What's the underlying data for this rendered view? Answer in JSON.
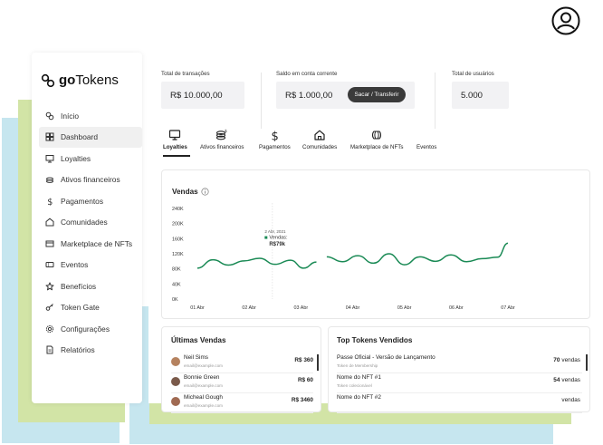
{
  "app": {
    "logo_prefix": "go",
    "logo_suffix": "Tokens"
  },
  "sidebar": {
    "items": [
      {
        "label": "Início",
        "icon": "gotokens-icon"
      },
      {
        "label": "Dashboard",
        "icon": "grid-icon"
      },
      {
        "label": "Loyalties",
        "icon": "monitor-icon"
      },
      {
        "label": "Ativos financeiros",
        "icon": "coins-icon"
      },
      {
        "label": "Pagamentos",
        "icon": "dollar-icon"
      },
      {
        "label": "Comunidades",
        "icon": "home-icon"
      },
      {
        "label": "Marketplace de NFTs",
        "icon": "card-icon"
      },
      {
        "label": "Eventos",
        "icon": "ticket-icon"
      },
      {
        "label": "Benefícios",
        "icon": "star-icon"
      },
      {
        "label": "Token Gate",
        "icon": "key-icon"
      },
      {
        "label": "Configurações",
        "icon": "gear-icon"
      },
      {
        "label": "Relatórios",
        "icon": "document-icon"
      }
    ],
    "active": "Dashboard"
  },
  "stats": {
    "transactions": {
      "label": "Total de transações",
      "value": "R$ 10.000,00"
    },
    "balance": {
      "label": "Saldo em conta corrente",
      "value": "R$ 1.000,00",
      "button": "Sacar / Transferir"
    },
    "users": {
      "label": "Total de usuários",
      "value": "5.000"
    }
  },
  "tabs": [
    {
      "label": "Loyalties",
      "icon": "monitor-icon"
    },
    {
      "label": "Ativos financeiros",
      "icon": "coins-icon"
    },
    {
      "label": "Pagamentos",
      "icon": "dollar-icon"
    },
    {
      "label": "Comunidades",
      "icon": "home-icon"
    },
    {
      "label": "Marketplace de NFTs",
      "icon": "nft-icon"
    },
    {
      "label": "Eventos",
      "icon": ""
    }
  ],
  "sales_chart": {
    "title": "Vendas",
    "info_icon": "info-icon",
    "tooltip": {
      "date": "2 Abr, 2021",
      "label": "Vendas:",
      "value": "R$79k"
    }
  },
  "chart_data": {
    "type": "line",
    "title": "Vendas",
    "x_ticks": [
      "01 Abr",
      "02 Abr",
      "03 Abr",
      "04 Abr",
      "05 Abr",
      "06 Abr",
      "07 Abr"
    ],
    "y_ticks": [
      "0K",
      "40K",
      "80K",
      "120K",
      "160K",
      "200K",
      "240K"
    ],
    "ylim": [
      0,
      240000
    ],
    "series": [
      {
        "color": "#1a8a55",
        "x": [
          1.0,
          1.3,
          1.6,
          1.9,
          2.2,
          2.5,
          2.8,
          3.05,
          3.3
        ],
        "y": [
          82000,
          104000,
          90000,
          101000,
          108000,
          92000,
          103000,
          82000,
          98000
        ]
      },
      {
        "color": "#1a8a55",
        "x": [
          3.5,
          3.8,
          4.1,
          4.4,
          4.7,
          5.0,
          5.3,
          5.6,
          5.9,
          6.2,
          6.5,
          6.8,
          7.0
        ],
        "y": [
          112000,
          99000,
          115000,
          95000,
          120000,
          91000,
          112000,
          100000,
          117000,
          99000,
          107000,
          111000,
          148000
        ]
      }
    ],
    "grid": false
  },
  "recent_sales": {
    "title": "Últimas Vendas",
    "rows": [
      {
        "name": "Neil Sims",
        "email": "email@example.com",
        "value": "R$ 360"
      },
      {
        "name": "Bonnie Green",
        "email": "email@example.com",
        "value": "R$ 60"
      },
      {
        "name": "Micheal Gough",
        "email": "email@example.com",
        "value": "R$ 3460"
      }
    ]
  },
  "top_tokens": {
    "title": "Top Tokens Vendidos",
    "rows": [
      {
        "name": "Passe Oficial - Versão de Lançamento",
        "sub": "Token de Membership",
        "count": "70",
        "unit": "vendas"
      },
      {
        "name": "Nome do NFT #1",
        "sub": "Token colecionável",
        "count": "54",
        "unit": "vendas"
      },
      {
        "name": "Nome do NFT #2",
        "sub": "",
        "count": "",
        "unit": "vendas"
      }
    ]
  }
}
